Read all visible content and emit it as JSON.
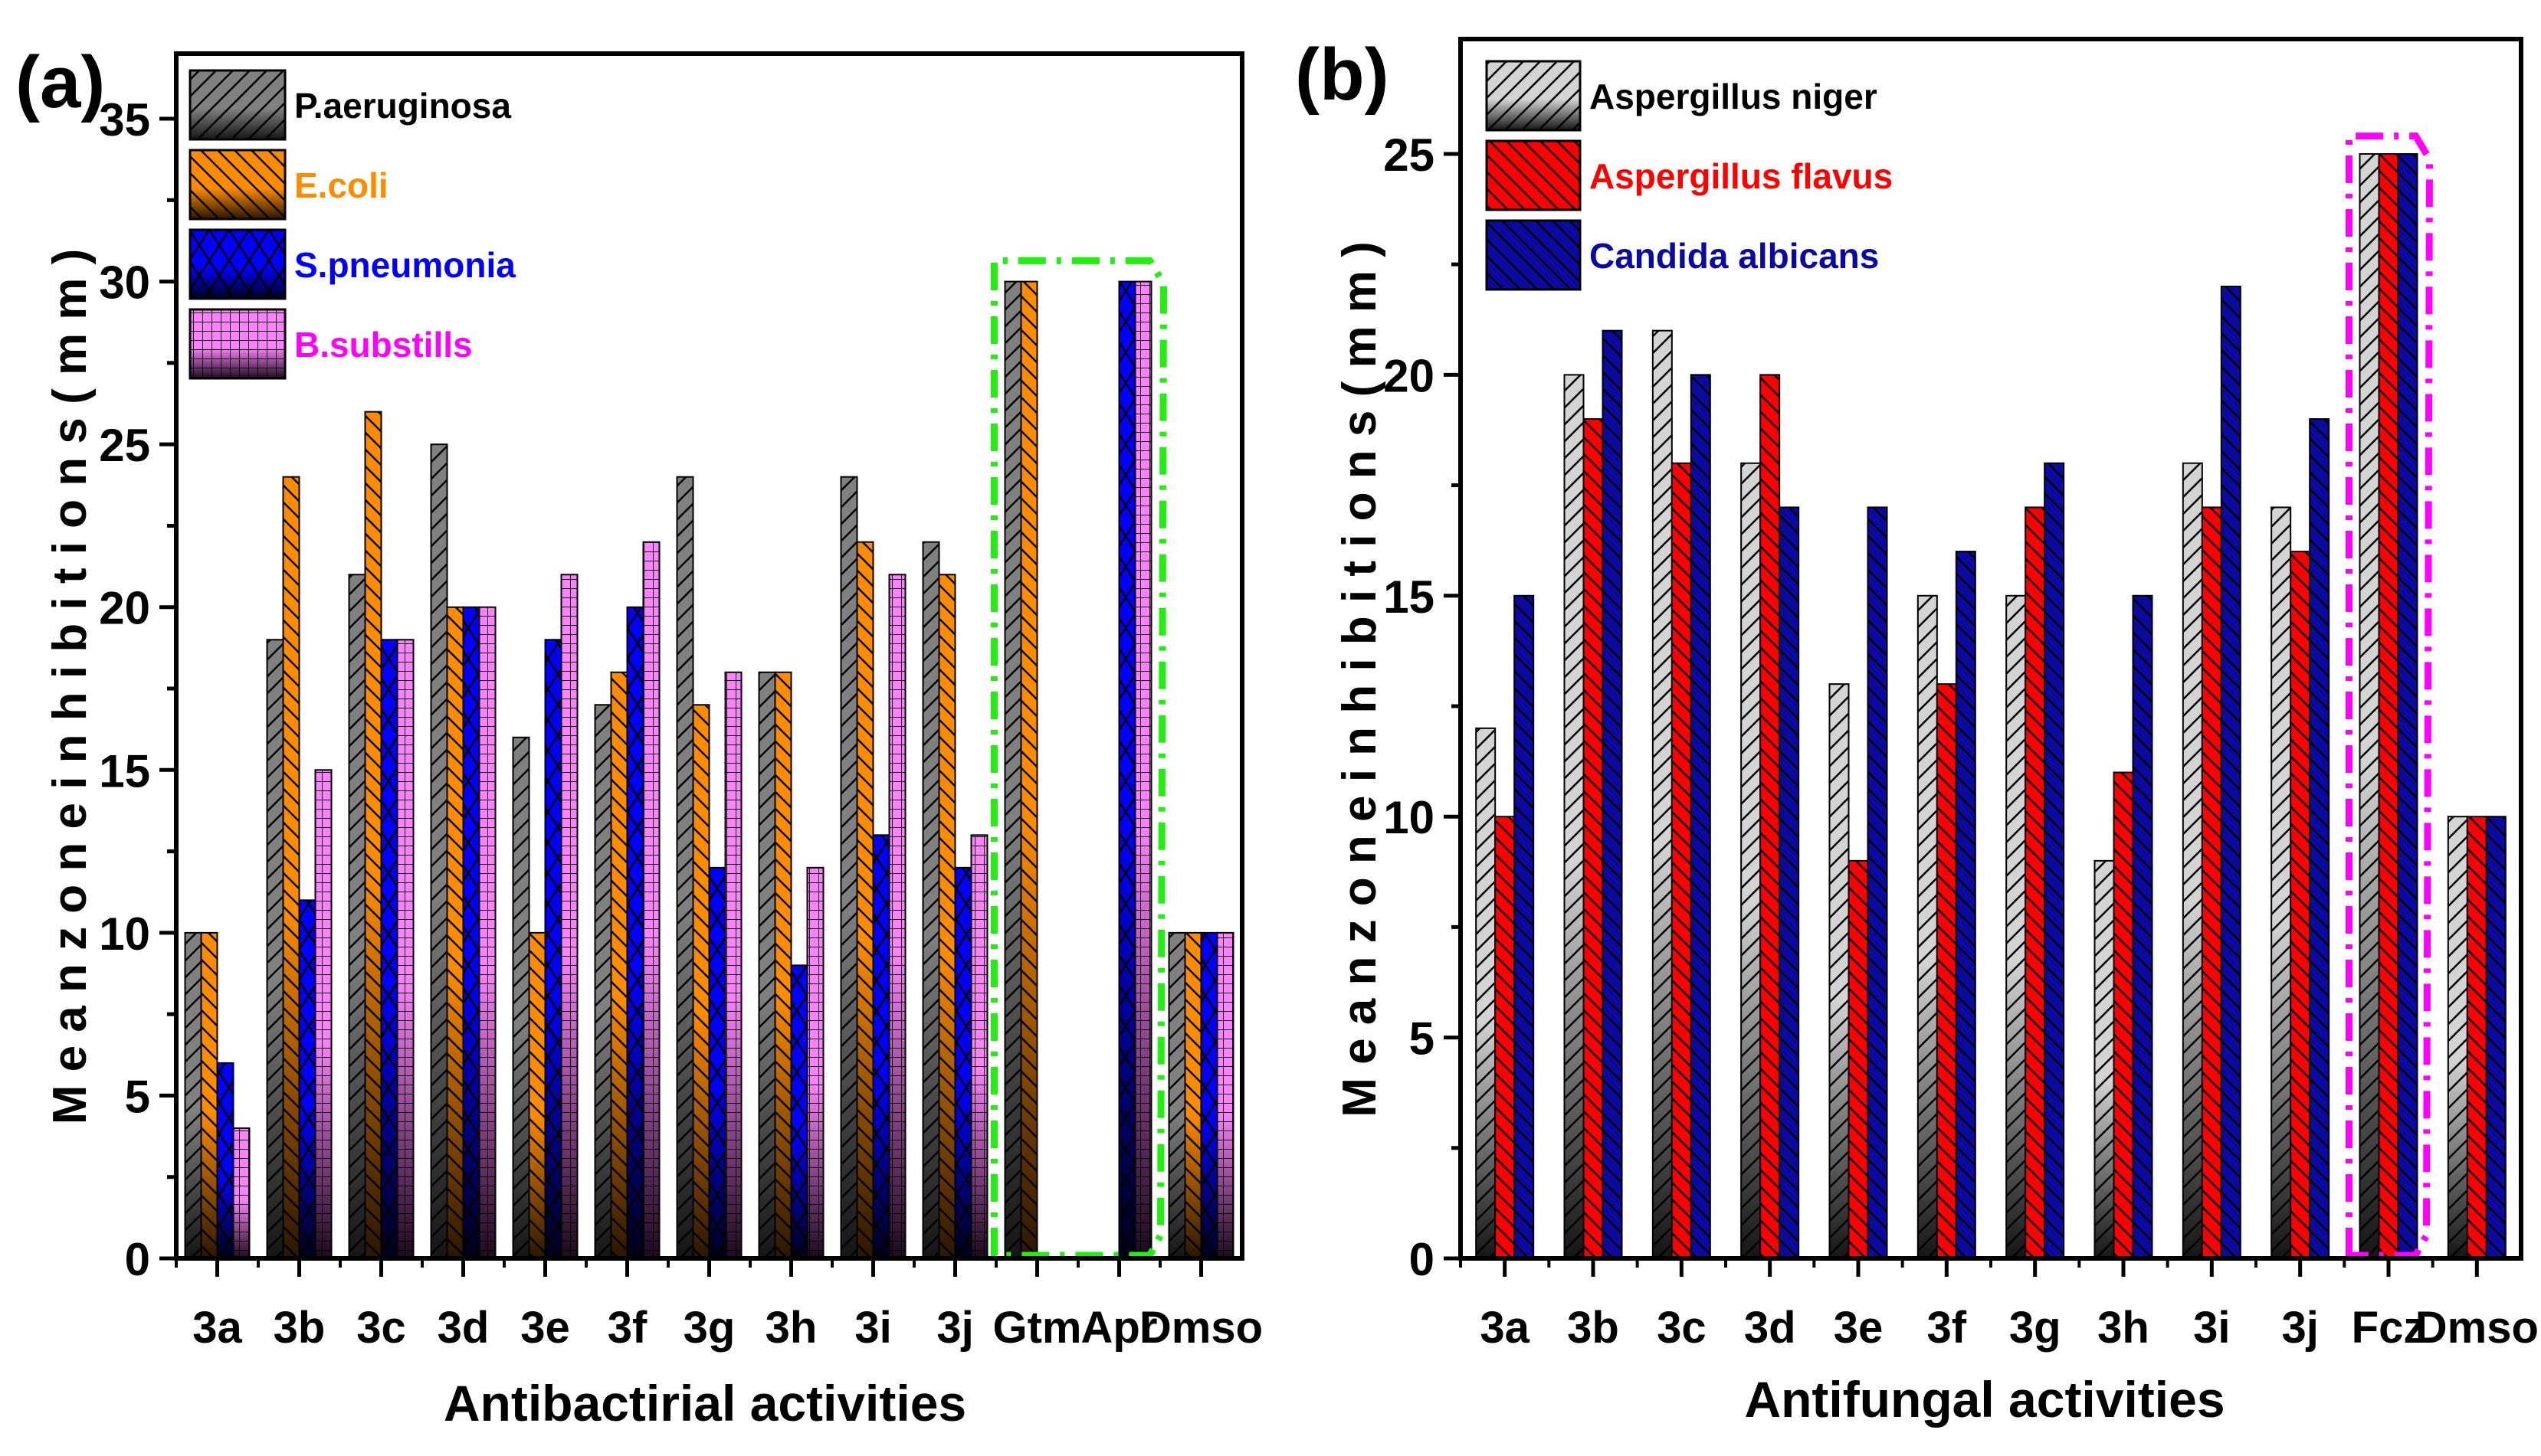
{
  "chart_data": [
    {
      "type": "bar",
      "panel_label": "(a)",
      "title": "",
      "xlabel": "Antibactirial activities",
      "ylabel": "M e a n  z o n e  i n h i b i t i o n s  ( m m )",
      "ylim": [
        0,
        37
      ],
      "yticks": [
        0,
        5,
        10,
        15,
        20,
        25,
        30,
        35
      ],
      "categories": [
        "3a",
        "3b",
        "3c",
        "3d",
        "3e",
        "3f",
        "3g",
        "3h",
        "3i",
        "3j",
        "Gtm",
        "Apr",
        "Dmso"
      ],
      "series": [
        {
          "name": "P.aeruginosa",
          "color": "#808080",
          "dark": "#151515",
          "text_color": "#000000",
          "hatch": "fwd",
          "values": [
            10,
            19,
            21,
            25,
            16,
            17,
            24,
            18,
            24,
            22,
            30,
            0,
            10
          ]
        },
        {
          "name": "E.coli",
          "color": "#ff8c00",
          "dark": "#2a1600",
          "text_color": "#ff8c00",
          "hatch": "back",
          "values": [
            10,
            24,
            26,
            20,
            10,
            18,
            17,
            18,
            22,
            21,
            30,
            0,
            10
          ]
        },
        {
          "name": "S.pneumonia",
          "color": "#0000ff",
          "dark": "#00001a",
          "text_color": "#0000ff",
          "hatch": "cross",
          "values": [
            6,
            11,
            19,
            20,
            19,
            20,
            12,
            9,
            13,
            12,
            0,
            30,
            10
          ]
        },
        {
          "name": "B.substills",
          "color": "#ff80ff",
          "dark": "#1e0a1e",
          "text_color": "#ff00ff",
          "hatch": "grid",
          "values": [
            4,
            15,
            19,
            20,
            21,
            22,
            18,
            12,
            21,
            13,
            0,
            30,
            10
          ]
        }
      ],
      "highlight": {
        "categories": [
          "Gtm",
          "Apr"
        ],
        "color": "#22ee11",
        "top": 30.5
      },
      "legend": "top-left"
    },
    {
      "type": "bar",
      "panel_label": "(b)",
      "title": "",
      "xlabel": "Antifungal activities",
      "ylabel": "M e a n  z o n e  i n h i b i t i o n s  ( m m )",
      "ylim": [
        0,
        27.6
      ],
      "yticks": [
        0,
        5,
        10,
        15,
        20,
        25
      ],
      "categories": [
        "3a",
        "3b",
        "3c",
        "3d",
        "3e",
        "3f",
        "3g",
        "3h",
        "3i",
        "3j",
        "Fcz",
        "Dmso"
      ],
      "series": [
        {
          "name": "Aspergillus niger",
          "color": "#d4d4d4",
          "dark": "#151515",
          "text_color": "#000000",
          "hatch": "fwd",
          "values": [
            12,
            20,
            21,
            18,
            13,
            15,
            15,
            9,
            18,
            17,
            25,
            10
          ]
        },
        {
          "name": "Aspergillus flavus",
          "color": "#ff0000",
          "dark": "#ff0000",
          "text_color": "#ff0000",
          "hatch": "back",
          "values": [
            10,
            19,
            18,
            20,
            9,
            13,
            17,
            11,
            17,
            16,
            25,
            10
          ]
        },
        {
          "name": "Candida albicans",
          "color": "#0a0aa0",
          "dark": "#0a0aa0",
          "text_color": "#0a0aa0",
          "hatch": "back",
          "values": [
            15,
            21,
            20,
            17,
            17,
            16,
            18,
            15,
            22,
            19,
            25,
            10
          ]
        }
      ],
      "highlight": {
        "categories": [
          "Fcz"
        ],
        "color": "#ff00ff",
        "top": 25.3
      },
      "legend": "top-left"
    }
  ]
}
